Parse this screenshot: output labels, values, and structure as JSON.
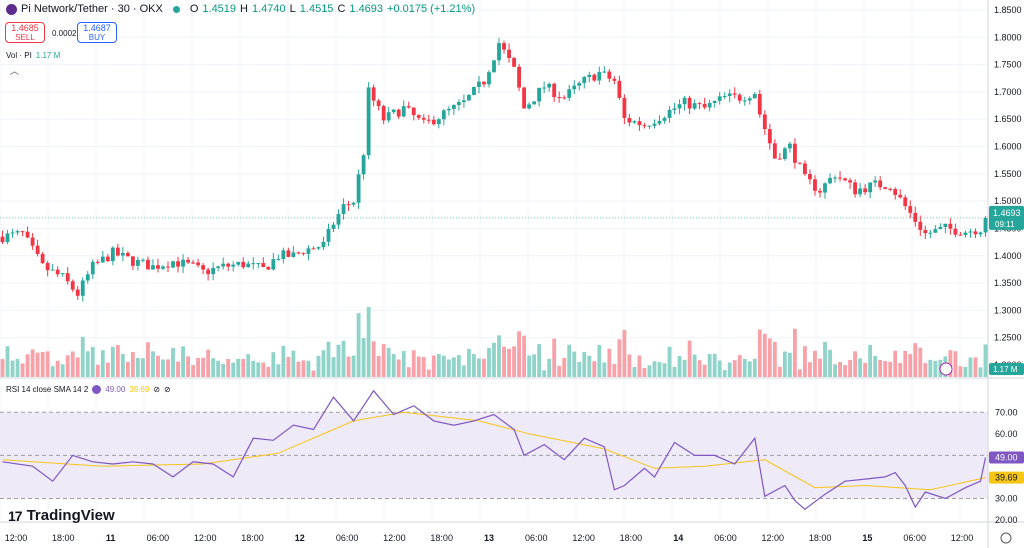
{
  "header": {
    "symbol": "Pi Network/Tether · 30 · OKX",
    "open_label": "O",
    "open": "1.4519",
    "high_label": "H",
    "high": "1.4740",
    "low_label": "L",
    "low": "1.4515",
    "close_label": "C",
    "close": "1.4693",
    "change": "+0.0175 (+1.21%)"
  },
  "trade": {
    "sell_price": "1.4685",
    "sell_label": "SELL",
    "spread": "0.0002",
    "buy_price": "1.4687",
    "buy_label": "BUY"
  },
  "volume_legend": {
    "label": "Vol · PI",
    "value": "1.17 M"
  },
  "rsi_legend": {
    "label": "RSI 14 close SMA 14 2",
    "rsi": "49.00",
    "sma": "39.69"
  },
  "watermark": "TradingView",
  "colors": {
    "up": "#26a69a",
    "down": "#f23645",
    "vol_up": "#8fd3c9",
    "vol_down": "#f7a1a8",
    "rsi": "#7e57c2",
    "sma": "#f5c518",
    "band": "#efeaf8"
  },
  "chart_data": {
    "type": "candlestick",
    "price_axis": {
      "min": 1.2,
      "max": 1.85,
      "ticks": [
        "1.8500",
        "1.8000",
        "1.7500",
        "1.7000",
        "1.6500",
        "1.6000",
        "1.5500",
        "1.5000",
        "1.4500",
        "1.4000",
        "1.3500",
        "1.3000",
        "1.2500",
        "1.2000"
      ]
    },
    "current_price": {
      "value": 1.4693,
      "label": "1.4693",
      "countdown": "09:11"
    },
    "volume_label": "1.17 M",
    "rsi_axis": {
      "min": 20,
      "max": 85,
      "ticks": [
        "70.00",
        "60.00",
        "50.00",
        "40.00",
        "30.00",
        "20.00"
      ],
      "upper_band": 70,
      "middle": 50,
      "lower_band": 30
    },
    "rsi_current": {
      "label": "49.00",
      "value": 49.0
    },
    "sma_current": {
      "label": "39.69",
      "value": 39.69
    },
    "time_axis": [
      "12:00",
      "18:00",
      "11",
      "06:00",
      "12:00",
      "18:00",
      "12",
      "06:00",
      "12:00",
      "18:00",
      "13",
      "06:00",
      "12:00",
      "18:00",
      "14",
      "06:00",
      "12:00",
      "18:00",
      "15",
      "06:00",
      "12:00"
    ],
    "price_path": [
      [
        0,
        1.435
      ],
      [
        4,
        1.44
      ],
      [
        8,
        1.38
      ],
      [
        12,
        1.36
      ],
      [
        15,
        1.33
      ],
      [
        18,
        1.38
      ],
      [
        22,
        1.405
      ],
      [
        26,
        1.39
      ],
      [
        30,
        1.38
      ],
      [
        34,
        1.39
      ],
      [
        38,
        1.38
      ],
      [
        40,
        1.37
      ],
      [
        44,
        1.38
      ],
      [
        48,
        1.385
      ],
      [
        52,
        1.375
      ],
      [
        55,
        1.4
      ],
      [
        58,
        1.4
      ],
      [
        60,
        1.41
      ],
      [
        64,
        1.42
      ],
      [
        66,
        1.46
      ],
      [
        68,
        1.49
      ],
      [
        70,
        1.5
      ],
      [
        72,
        1.59
      ],
      [
        73,
        1.7
      ],
      [
        76,
        1.65
      ],
      [
        80,
        1.67
      ],
      [
        84,
        1.64
      ],
      [
        88,
        1.66
      ],
      [
        92,
        1.68
      ],
      [
        96,
        1.72
      ],
      [
        99,
        1.79
      ],
      [
        102,
        1.74
      ],
      [
        104,
        1.67
      ],
      [
        108,
        1.71
      ],
      [
        112,
        1.69
      ],
      [
        116,
        1.72
      ],
      [
        119,
        1.735
      ],
      [
        122,
        1.72
      ],
      [
        124,
        1.65
      ],
      [
        128,
        1.64
      ],
      [
        132,
        1.66
      ],
      [
        136,
        1.68
      ],
      [
        140,
        1.67
      ],
      [
        144,
        1.69
      ],
      [
        147,
        1.69
      ],
      [
        150,
        1.7
      ],
      [
        151,
        1.66
      ],
      [
        154,
        1.58
      ],
      [
        157,
        1.6
      ],
      [
        160,
        1.54
      ],
      [
        163,
        1.52
      ],
      [
        166,
        1.55
      ],
      [
        170,
        1.52
      ],
      [
        174,
        1.53
      ],
      [
        177,
        1.53
      ],
      [
        180,
        1.49
      ],
      [
        184,
        1.44
      ],
      [
        188,
        1.45
      ],
      [
        192,
        1.445
      ],
      [
        195,
        1.45
      ],
      [
        196,
        1.4693
      ]
    ],
    "rsi_path": [
      [
        0,
        47
      ],
      [
        6,
        45
      ],
      [
        10,
        38
      ],
      [
        14,
        50
      ],
      [
        18,
        47
      ],
      [
        22,
        46
      ],
      [
        26,
        47
      ],
      [
        30,
        46
      ],
      [
        34,
        40
      ],
      [
        38,
        47
      ],
      [
        42,
        46
      ],
      [
        46,
        40
      ],
      [
        50,
        58
      ],
      [
        54,
        57
      ],
      [
        58,
        64
      ],
      [
        62,
        62
      ],
      [
        66,
        77
      ],
      [
        70,
        66
      ],
      [
        74,
        80
      ],
      [
        78,
        69
      ],
      [
        82,
        73
      ],
      [
        86,
        66
      ],
      [
        90,
        64
      ],
      [
        94,
        66
      ],
      [
        98,
        69
      ],
      [
        102,
        62
      ],
      [
        104,
        50
      ],
      [
        108,
        55
      ],
      [
        112,
        48
      ],
      [
        116,
        58
      ],
      [
        120,
        54
      ],
      [
        122,
        34
      ],
      [
        124,
        36
      ],
      [
        128,
        44
      ],
      [
        130,
        40
      ],
      [
        134,
        56
      ],
      [
        138,
        50
      ],
      [
        142,
        50
      ],
      [
        146,
        46
      ],
      [
        150,
        58
      ],
      [
        152,
        31
      ],
      [
        156,
        36
      ],
      [
        158,
        29
      ],
      [
        160,
        25
      ],
      [
        164,
        32
      ],
      [
        168,
        38
      ],
      [
        172,
        39
      ],
      [
        176,
        40
      ],
      [
        178,
        42
      ],
      [
        180,
        36
      ],
      [
        182,
        26
      ],
      [
        184,
        33
      ],
      [
        188,
        30
      ],
      [
        192,
        35
      ],
      [
        195,
        38
      ],
      [
        196,
        49
      ]
    ],
    "sma_path": [
      [
        0,
        48
      ],
      [
        20,
        45
      ],
      [
        40,
        46
      ],
      [
        55,
        51
      ],
      [
        70,
        66
      ],
      [
        80,
        70
      ],
      [
        95,
        66
      ],
      [
        105,
        60
      ],
      [
        120,
        53
      ],
      [
        130,
        44
      ],
      [
        140,
        45
      ],
      [
        152,
        48
      ],
      [
        162,
        35
      ],
      [
        172,
        36
      ],
      [
        185,
        34
      ],
      [
        196,
        39.69
      ]
    ]
  }
}
